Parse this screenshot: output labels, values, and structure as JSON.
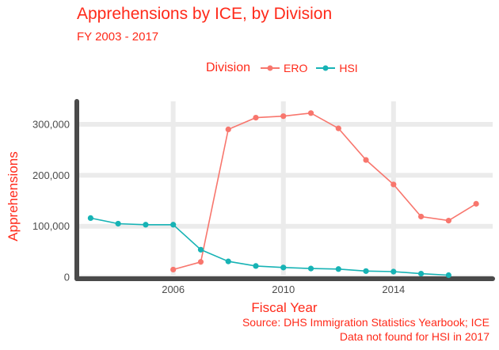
{
  "title": "Apprehensions by ICE, by Division",
  "subtitle": "FY 2003 - 2017",
  "legend": {
    "title": "Division",
    "items": [
      {
        "label": "ERO",
        "color": "#f8766d"
      },
      {
        "label": "HSI",
        "color": "#17b3b5"
      }
    ]
  },
  "caption": {
    "line1": "Source: DHS Immigration Statistics Yearbook; ICE",
    "line2": "Data not found for HSI in 2017"
  },
  "colors": {
    "accent": "#ff2a1a",
    "axis": "#4a4a4a",
    "grid": "#ebebeb"
  },
  "chart_data": {
    "type": "line",
    "title": "Apprehensions by ICE, by Division",
    "subtitle": "FY 2003 - 2017",
    "xlabel": "Fiscal Year",
    "ylabel": "Apprehensions",
    "xlim": [
      2002.5,
      2017.6
    ],
    "ylim": [
      -3000,
      345000
    ],
    "x_ticks": [
      2006,
      2010,
      2014
    ],
    "x_tick_labels": [
      "2006",
      "2010",
      "2014"
    ],
    "y_ticks": [
      0,
      100000,
      200000,
      300000
    ],
    "y_tick_labels": [
      "0",
      "100,000",
      "200,000",
      "300,000"
    ],
    "grid": true,
    "legend_position": "top",
    "series": [
      {
        "name": "ERO",
        "color": "#f8766d",
        "x": [
          2006,
          2007,
          2008,
          2009,
          2010,
          2011,
          2012,
          2013,
          2014,
          2015,
          2016,
          2017
        ],
        "values": [
          15000,
          30000,
          290000,
          313000,
          316000,
          322000,
          292000,
          230000,
          182000,
          119000,
          111000,
          144000
        ]
      },
      {
        "name": "HSI",
        "color": "#17b3b5",
        "x": [
          2003,
          2004,
          2005,
          2006,
          2007,
          2008,
          2009,
          2010,
          2011,
          2012,
          2013,
          2014,
          2015,
          2016
        ],
        "values": [
          116000,
          105000,
          103000,
          103000,
          54000,
          31000,
          22000,
          19000,
          17000,
          16000,
          12000,
          11000,
          7000,
          4000
        ]
      }
    ]
  }
}
